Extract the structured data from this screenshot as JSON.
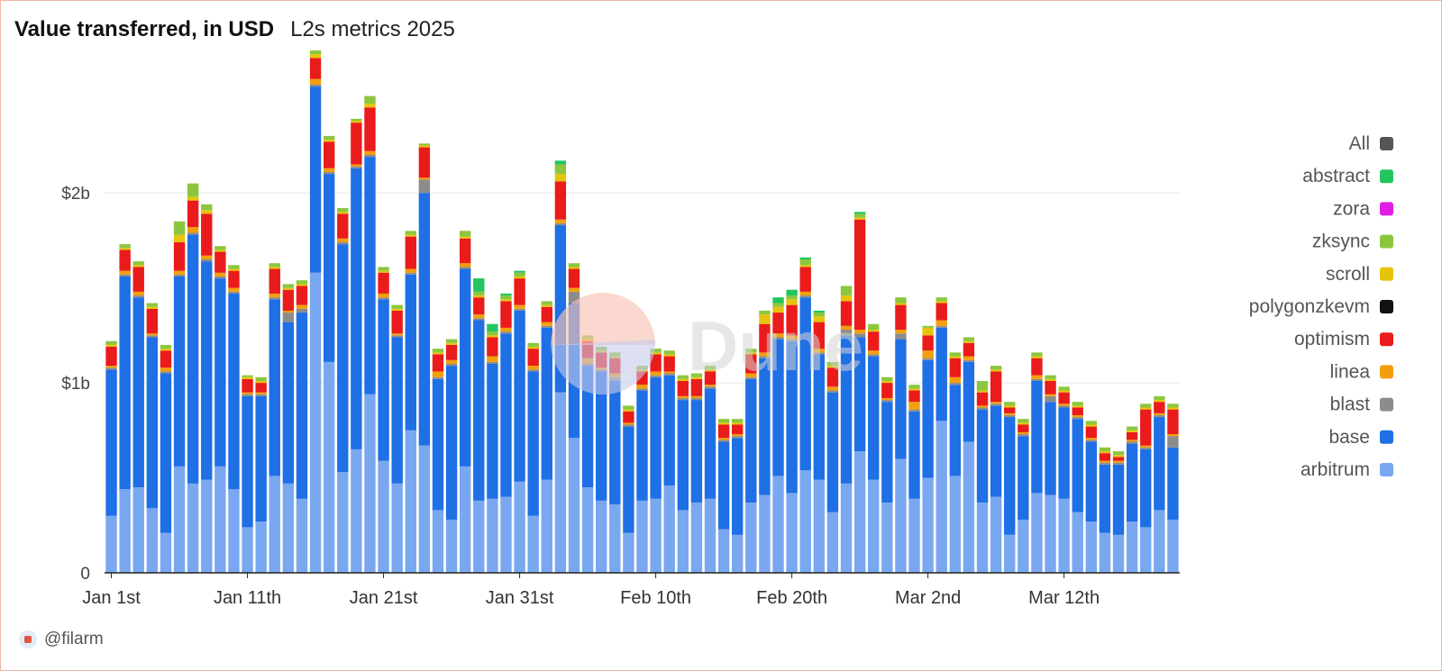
{
  "header": {
    "title": "Value transferred, in USD",
    "subtitle": "L2s metrics 2025"
  },
  "footer": {
    "author": "@filarm"
  },
  "watermark": {
    "text": "Dune"
  },
  "colors": {
    "grid": "#e6e6e6",
    "axis": "#222222",
    "watermark_text": "#d4d4d4",
    "watermark_logo_top": "#f7c3b6",
    "watermark_logo_bottom": "#c6cbe9"
  },
  "chart_data": {
    "type": "bar",
    "stacked": true,
    "title": "Value transferred, in USD",
    "subtitle": "L2s metrics 2025",
    "xlabel": "",
    "ylabel": "",
    "unit": "USD",
    "ylim": [
      0,
      2750000000
    ],
    "yticks": [
      {
        "value": 0,
        "label": "0"
      },
      {
        "value": 1000000000,
        "label": "$1b"
      },
      {
        "value": 2000000000,
        "label": "$2b"
      }
    ],
    "xticks": [
      {
        "index": 0,
        "label": "Jan 1st"
      },
      {
        "index": 10,
        "label": "Jan 11th"
      },
      {
        "index": 20,
        "label": "Jan 21st"
      },
      {
        "index": 30,
        "label": "Jan 31st"
      },
      {
        "index": 40,
        "label": "Feb 10th"
      },
      {
        "index": 50,
        "label": "Feb 20th"
      },
      {
        "index": 60,
        "label": "Mar 2nd"
      },
      {
        "index": 70,
        "label": "Mar 12th"
      }
    ],
    "grid": true,
    "legend_position": "right",
    "legend": [
      {
        "name": "All",
        "color": "#555555"
      },
      {
        "name": "abstract",
        "color": "#22c55e"
      },
      {
        "name": "zora",
        "color": "#e11ee6"
      },
      {
        "name": "zksync",
        "color": "#8cc63f"
      },
      {
        "name": "scroll",
        "color": "#e6c40c"
      },
      {
        "name": "polygonzkevm",
        "color": "#111111"
      },
      {
        "name": "optimism",
        "color": "#ea1b1b"
      },
      {
        "name": "linea",
        "color": "#f29f0c"
      },
      {
        "name": "blast",
        "color": "#8c8c8c"
      },
      {
        "name": "base",
        "color": "#1f6fe5"
      },
      {
        "name": "arbitrum",
        "color": "#79a8f0"
      }
    ],
    "series": [
      {
        "name": "arbitrum",
        "color": "#79a8f0",
        "values": [
          300000000,
          440000000,
          450000000,
          340000000,
          210000000,
          560000000,
          470000000,
          490000000,
          560000000,
          440000000,
          240000000,
          270000000,
          510000000,
          470000000,
          390000000,
          1580000000,
          1110000000,
          530000000,
          650000000,
          940000000,
          590000000,
          470000000,
          750000000,
          670000000,
          330000000,
          280000000,
          560000000,
          380000000,
          390000000,
          400000000,
          480000000,
          300000000,
          490000000,
          950000000,
          710000000,
          450000000,
          380000000,
          360000000,
          210000000,
          380000000,
          390000000,
          460000000,
          330000000,
          370000000,
          390000000,
          230000000,
          200000000,
          370000000,
          410000000,
          510000000,
          420000000,
          540000000,
          490000000,
          320000000,
          470000000,
          640000000,
          490000000,
          370000000,
          600000000,
          390000000,
          500000000,
          800000000,
          510000000,
          690000000,
          370000000,
          400000000,
          200000000,
          280000000,
          420000000,
          410000000,
          390000000,
          320000000,
          270000000,
          210000000,
          200000000,
          270000000,
          240000000,
          330000000,
          280000000
        ]
      },
      {
        "name": "base",
        "color": "#1f6fe5",
        "values": [
          770000000,
          1120000000,
          1000000000,
          900000000,
          840000000,
          1000000000,
          1310000000,
          1150000000,
          990000000,
          1030000000,
          690000000,
          660000000,
          930000000,
          850000000,
          980000000,
          980000000,
          990000000,
          1200000000,
          1480000000,
          1250000000,
          850000000,
          770000000,
          820000000,
          1330000000,
          690000000,
          810000000,
          1040000000,
          950000000,
          710000000,
          860000000,
          900000000,
          760000000,
          800000000,
          880000000,
          710000000,
          640000000,
          680000000,
          650000000,
          560000000,
          580000000,
          640000000,
          580000000,
          580000000,
          540000000,
          580000000,
          460000000,
          510000000,
          650000000,
          720000000,
          720000000,
          800000000,
          910000000,
          660000000,
          630000000,
          780000000,
          600000000,
          650000000,
          530000000,
          630000000,
          460000000,
          620000000,
          490000000,
          480000000,
          420000000,
          490000000,
          480000000,
          620000000,
          440000000,
          590000000,
          490000000,
          480000000,
          490000000,
          420000000,
          360000000,
          370000000,
          410000000,
          410000000,
          490000000,
          380000000
        ]
      },
      {
        "name": "blast",
        "color": "#8c8c8c",
        "values": [
          10000000,
          10000000,
          10000000,
          10000000,
          10000000,
          10000000,
          10000000,
          10000000,
          10000000,
          10000000,
          10000000,
          10000000,
          10000000,
          50000000,
          20000000,
          10000000,
          10000000,
          10000000,
          10000000,
          10000000,
          10000000,
          10000000,
          10000000,
          70000000,
          10000000,
          10000000,
          10000000,
          10000000,
          10000000,
          10000000,
          10000000,
          10000000,
          10000000,
          10000000,
          60000000,
          10000000,
          10000000,
          20000000,
          10000000,
          10000000,
          10000000,
          10000000,
          10000000,
          10000000,
          10000000,
          10000000,
          10000000,
          10000000,
          10000000,
          10000000,
          10000000,
          10000000,
          10000000,
          10000000,
          30000000,
          20000000,
          10000000,
          10000000,
          30000000,
          10000000,
          10000000,
          10000000,
          10000000,
          10000000,
          10000000,
          10000000,
          10000000,
          10000000,
          10000000,
          30000000,
          10000000,
          10000000,
          10000000,
          10000000,
          10000000,
          10000000,
          10000000,
          10000000,
          60000000
        ]
      },
      {
        "name": "linea",
        "color": "#f29f0c",
        "values": [
          10000000,
          20000000,
          20000000,
          10000000,
          20000000,
          20000000,
          30000000,
          20000000,
          20000000,
          20000000,
          10000000,
          10000000,
          20000000,
          10000000,
          20000000,
          30000000,
          20000000,
          20000000,
          10000000,
          20000000,
          20000000,
          10000000,
          20000000,
          10000000,
          30000000,
          20000000,
          20000000,
          20000000,
          30000000,
          20000000,
          20000000,
          20000000,
          20000000,
          20000000,
          20000000,
          30000000,
          10000000,
          20000000,
          10000000,
          20000000,
          20000000,
          10000000,
          10000000,
          10000000,
          10000000,
          10000000,
          10000000,
          20000000,
          20000000,
          20000000,
          20000000,
          20000000,
          20000000,
          20000000,
          20000000,
          20000000,
          20000000,
          10000000,
          20000000,
          40000000,
          40000000,
          30000000,
          30000000,
          20000000,
          10000000,
          10000000,
          10000000,
          10000000,
          20000000,
          10000000,
          10000000,
          10000000,
          10000000,
          10000000,
          10000000,
          10000000,
          10000000,
          10000000,
          10000000
        ]
      },
      {
        "name": "polygonzkevm",
        "color": "#111111",
        "values": [
          0,
          0,
          0,
          0,
          0,
          0,
          0,
          0,
          0,
          0,
          0,
          0,
          0,
          0,
          0,
          0,
          0,
          0,
          0,
          0,
          0,
          0,
          0,
          0,
          0,
          0,
          0,
          0,
          0,
          0,
          0,
          0,
          0,
          0,
          0,
          0,
          0,
          0,
          0,
          0,
          0,
          0,
          0,
          0,
          0,
          0,
          0,
          0,
          0,
          0,
          0,
          0,
          0,
          0,
          0,
          0,
          0,
          0,
          0,
          0,
          0,
          0,
          0,
          0,
          0,
          0,
          0,
          0,
          0,
          0,
          0,
          0,
          0,
          0,
          0,
          0,
          0,
          0,
          0
        ]
      },
      {
        "name": "optimism",
        "color": "#ea1b1b",
        "values": [
          100000000,
          110000000,
          130000000,
          130000000,
          90000000,
          150000000,
          140000000,
          220000000,
          110000000,
          90000000,
          70000000,
          50000000,
          130000000,
          110000000,
          100000000,
          110000000,
          140000000,
          130000000,
          220000000,
          230000000,
          110000000,
          120000000,
          170000000,
          160000000,
          90000000,
          80000000,
          130000000,
          90000000,
          100000000,
          140000000,
          140000000,
          90000000,
          80000000,
          200000000,
          100000000,
          90000000,
          80000000,
          80000000,
          60000000,
          70000000,
          90000000,
          80000000,
          80000000,
          90000000,
          70000000,
          70000000,
          50000000,
          100000000,
          150000000,
          110000000,
          160000000,
          130000000,
          140000000,
          100000000,
          130000000,
          580000000,
          100000000,
          80000000,
          130000000,
          60000000,
          80000000,
          90000000,
          100000000,
          70000000,
          70000000,
          160000000,
          30000000,
          40000000,
          90000000,
          70000000,
          60000000,
          40000000,
          60000000,
          40000000,
          20000000,
          40000000,
          190000000,
          60000000,
          130000000
        ]
      },
      {
        "name": "scroll",
        "color": "#e6c40c",
        "values": [
          10000000,
          10000000,
          10000000,
          10000000,
          10000000,
          40000000,
          20000000,
          20000000,
          10000000,
          10000000,
          10000000,
          10000000,
          10000000,
          10000000,
          10000000,
          20000000,
          10000000,
          10000000,
          10000000,
          20000000,
          10000000,
          10000000,
          10000000,
          10000000,
          10000000,
          10000000,
          10000000,
          10000000,
          10000000,
          10000000,
          10000000,
          10000000,
          10000000,
          40000000,
          10000000,
          10000000,
          10000000,
          10000000,
          10000000,
          10000000,
          10000000,
          10000000,
          10000000,
          10000000,
          10000000,
          10000000,
          10000000,
          10000000,
          50000000,
          30000000,
          30000000,
          10000000,
          30000000,
          10000000,
          30000000,
          10000000,
          10000000,
          10000000,
          10000000,
          10000000,
          40000000,
          10000000,
          10000000,
          10000000,
          10000000,
          10000000,
          10000000,
          10000000,
          10000000,
          10000000,
          10000000,
          10000000,
          10000000,
          10000000,
          10000000,
          10000000,
          10000000,
          10000000,
          10000000
        ]
      },
      {
        "name": "zksync",
        "color": "#8cc63f",
        "values": [
          20000000,
          20000000,
          20000000,
          20000000,
          20000000,
          70000000,
          70000000,
          30000000,
          20000000,
          20000000,
          10000000,
          20000000,
          20000000,
          20000000,
          20000000,
          20000000,
          20000000,
          20000000,
          10000000,
          40000000,
          20000000,
          20000000,
          20000000,
          10000000,
          20000000,
          20000000,
          30000000,
          20000000,
          20000000,
          20000000,
          20000000,
          20000000,
          20000000,
          50000000,
          20000000,
          20000000,
          20000000,
          20000000,
          20000000,
          20000000,
          20000000,
          20000000,
          20000000,
          20000000,
          20000000,
          20000000,
          20000000,
          20000000,
          20000000,
          20000000,
          20000000,
          30000000,
          20000000,
          20000000,
          50000000,
          20000000,
          30000000,
          20000000,
          30000000,
          20000000,
          10000000,
          20000000,
          20000000,
          20000000,
          50000000,
          20000000,
          20000000,
          20000000,
          20000000,
          20000000,
          20000000,
          20000000,
          20000000,
          20000000,
          20000000,
          20000000,
          20000000,
          20000000,
          20000000
        ]
      },
      {
        "name": "zora",
        "color": "#e11ee6",
        "values": [
          0,
          0,
          0,
          0,
          0,
          0,
          0,
          0,
          0,
          0,
          0,
          0,
          0,
          0,
          0,
          0,
          0,
          0,
          0,
          0,
          0,
          0,
          0,
          0,
          0,
          0,
          0,
          0,
          0,
          0,
          0,
          0,
          0,
          0,
          0,
          0,
          0,
          0,
          0,
          0,
          0,
          0,
          0,
          0,
          0,
          0,
          0,
          0,
          0,
          0,
          0,
          0,
          0,
          0,
          0,
          0,
          0,
          0,
          0,
          0,
          0,
          0,
          0,
          0,
          0,
          0,
          0,
          0,
          0,
          0,
          0,
          0,
          0,
          0,
          0,
          0,
          0,
          0,
          0
        ]
      },
      {
        "name": "abstract",
        "color": "#22c55e",
        "values": [
          0,
          0,
          0,
          0,
          0,
          0,
          0,
          0,
          0,
          0,
          0,
          0,
          0,
          0,
          0,
          0,
          0,
          0,
          0,
          0,
          0,
          0,
          0,
          0,
          0,
          0,
          0,
          70000000,
          40000000,
          10000000,
          10000000,
          0,
          0,
          20000000,
          0,
          0,
          0,
          0,
          0,
          0,
          0,
          0,
          0,
          0,
          0,
          0,
          0,
          0,
          0,
          30000000,
          30000000,
          10000000,
          10000000,
          0,
          0,
          10000000,
          0,
          0,
          0,
          0,
          0,
          0,
          0,
          0,
          0,
          0,
          0,
          0,
          0,
          0,
          0,
          0,
          0,
          0,
          0,
          0,
          0,
          0,
          0
        ]
      }
    ]
  }
}
